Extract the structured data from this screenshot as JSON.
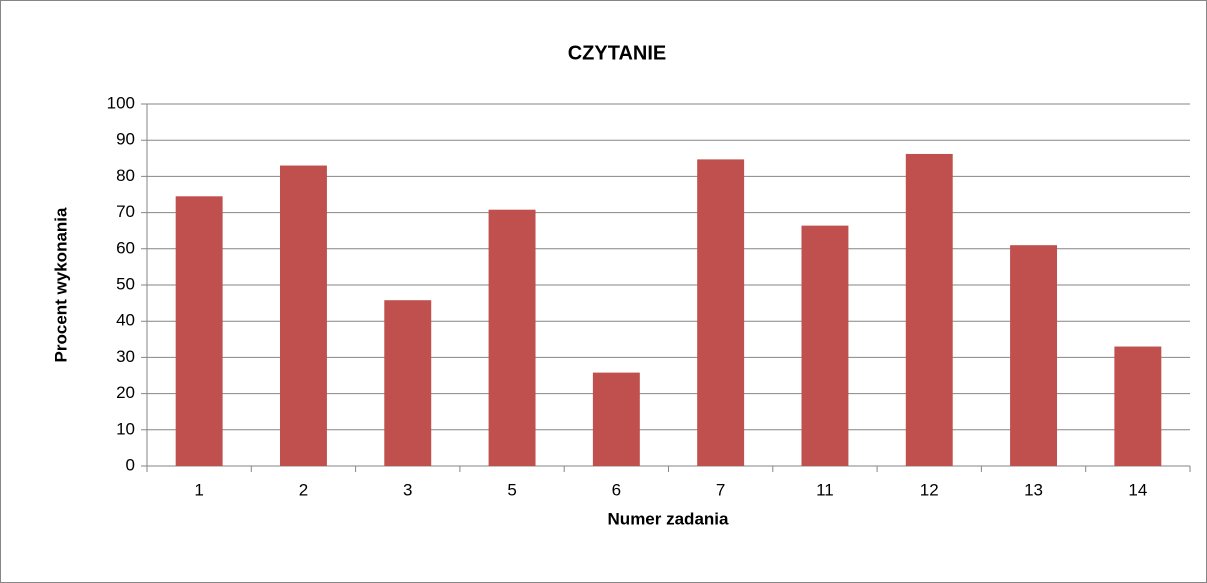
{
  "chart_data": {
    "type": "bar",
    "title": "CZYTANIE",
    "x_label": "Numer zadania",
    "y_label": "Procent wykonania",
    "categories": [
      "1",
      "2",
      "3",
      "5",
      "6",
      "7",
      "11",
      "12",
      "13",
      "14"
    ],
    "values": [
      74.5,
      83,
      45.8,
      70.8,
      25.8,
      84.7,
      66.4,
      86.2,
      61,
      33
    ],
    "color": "#c0504d",
    "ylim": [
      0,
      100
    ],
    "yticks": [
      0,
      10,
      20,
      30,
      40,
      50,
      60,
      70,
      80,
      90,
      100
    ],
    "grid": true
  }
}
